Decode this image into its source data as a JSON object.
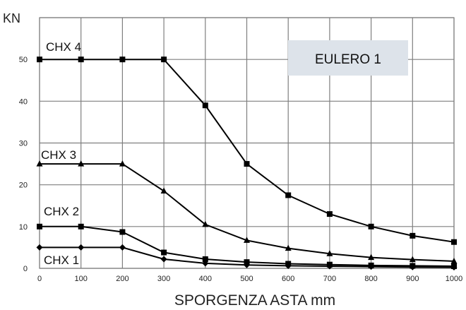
{
  "chart_data": {
    "type": "line",
    "title": "",
    "xlabel": "SPORGENZA ASTA mm",
    "ylabel": "KN",
    "x": [
      0,
      100,
      200,
      300,
      400,
      500,
      600,
      700,
      800,
      900,
      1000
    ],
    "xlim": [
      0,
      1000
    ],
    "ylim": [
      0,
      60
    ],
    "xticks": [
      "0",
      "100",
      "200",
      "300",
      "400",
      "500",
      "600",
      "700",
      "800",
      "900",
      "1000"
    ],
    "yticks": [
      "0",
      "10",
      "20",
      "30",
      "40",
      "50"
    ],
    "grid": true,
    "legend": "labels placed next to each line",
    "annotation": "EULERO 1",
    "colors": {
      "line": "#000000",
      "grid": "#7f7f7f",
      "annotation_box": "#dde3ea"
    },
    "series": [
      {
        "name": "CHX 4",
        "marker": "square",
        "values": [
          50,
          50,
          50,
          50,
          39,
          25,
          17.5,
          13,
          10,
          7.8,
          6.3
        ]
      },
      {
        "name": "CHX 3",
        "marker": "triangle",
        "values": [
          25,
          25,
          25,
          18.5,
          10.5,
          6.7,
          4.8,
          3.5,
          2.6,
          2.1,
          1.7
        ]
      },
      {
        "name": "CHX 2",
        "marker": "square",
        "values": [
          10,
          10,
          8.7,
          3.8,
          2.2,
          1.5,
          1.1,
          0.9,
          0.7,
          0.6,
          0.5
        ]
      },
      {
        "name": "CHX 1",
        "marker": "diamond",
        "values": [
          5,
          5,
          5,
          2.2,
          1.2,
          0.8,
          0.6,
          0.5,
          0.4,
          0.3,
          0.25
        ]
      }
    ]
  }
}
